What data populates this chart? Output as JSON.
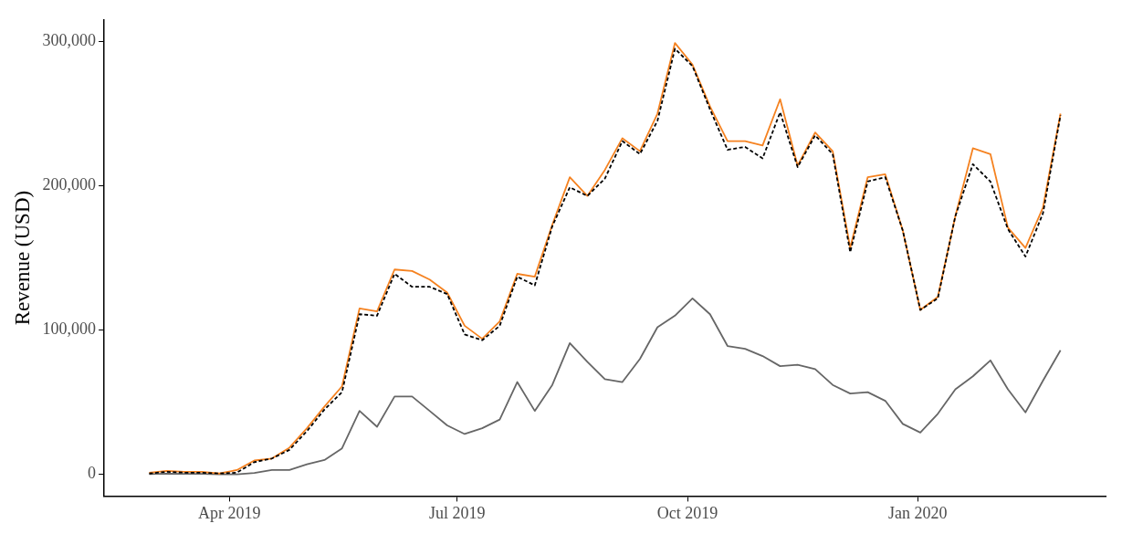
{
  "chart_data": {
    "type": "line",
    "ylabel": "Revenue (USD)",
    "x": [
      "2019-02-28",
      "2019-03-07",
      "2019-03-14",
      "2019-03-21",
      "2019-03-28",
      "2019-04-04",
      "2019-04-11",
      "2019-04-18",
      "2019-04-25",
      "2019-05-02",
      "2019-05-09",
      "2019-05-16",
      "2019-05-23",
      "2019-05-30",
      "2019-06-06",
      "2019-06-13",
      "2019-06-20",
      "2019-06-27",
      "2019-07-04",
      "2019-07-11",
      "2019-07-18",
      "2019-07-25",
      "2019-08-01",
      "2019-08-08",
      "2019-08-15",
      "2019-08-22",
      "2019-08-29",
      "2019-09-05",
      "2019-09-12",
      "2019-09-19",
      "2019-09-26",
      "2019-10-03",
      "2019-10-10",
      "2019-10-17",
      "2019-10-24",
      "2019-10-31",
      "2019-11-07",
      "2019-11-14",
      "2019-11-21",
      "2019-11-28",
      "2019-12-05",
      "2019-12-12",
      "2019-12-19",
      "2019-12-26",
      "2020-01-02",
      "2020-01-09",
      "2020-01-16",
      "2020-01-23",
      "2020-01-30",
      "2020-02-06",
      "2020-02-13",
      "2020-02-20",
      "2020-02-27"
    ],
    "series": [
      {
        "color": "#666666",
        "line_style": "solid",
        "values": [
          200,
          500,
          400,
          400,
          0,
          0,
          1000,
          3000,
          3000,
          7000,
          10000,
          18000,
          44000,
          33000,
          54000,
          54000,
          44000,
          34000,
          28000,
          32000,
          38000,
          64000,
          44000,
          62000,
          91000,
          78000,
          66000,
          64000,
          80000,
          102000,
          110000,
          122000,
          111000,
          89000,
          87000,
          82000,
          75000,
          76000,
          73000,
          62000,
          56000,
          57000,
          51000,
          35000,
          29000,
          42000,
          59000,
          68000,
          79000,
          59000,
          43000,
          65000,
          86000
        ]
      },
      {
        "color": "#f58220",
        "line_style": "solid",
        "values": [
          1200,
          2400,
          1800,
          1800,
          600,
          3000,
          9600,
          11000,
          18500,
          32000,
          47000,
          61000,
          115000,
          113000,
          142000,
          141000,
          135000,
          126000,
          103000,
          94000,
          106000,
          139000,
          137000,
          173000,
          206000,
          193000,
          211000,
          233000,
          224000,
          250000,
          299000,
          284000,
          255000,
          231000,
          231000,
          228000,
          260000,
          214000,
          237000,
          224000,
          157000,
          206000,
          208000,
          169000,
          114000,
          123000,
          179000,
          226000,
          222000,
          171000,
          157000,
          185000,
          250000
        ]
      },
      {
        "color": "#000000",
        "line_style": "dashed",
        "values": [
          600,
          1800,
          1200,
          1200,
          600,
          1200,
          8500,
          11000,
          17000,
          30000,
          45000,
          57000,
          111000,
          110000,
          139000,
          130000,
          130000,
          125000,
          97000,
          93000,
          103000,
          137000,
          131000,
          172000,
          199000,
          193000,
          205000,
          231000,
          222000,
          245000,
          295000,
          283000,
          253000,
          225000,
          227000,
          219000,
          251000,
          213000,
          235000,
          222000,
          154000,
          203000,
          206000,
          169000,
          114000,
          122000,
          179000,
          215000,
          203000,
          170000,
          151000,
          181000,
          249000
        ]
      }
    ],
    "xlim": [
      "2019-02-10",
      "2020-03-16"
    ],
    "xticks": [
      {
        "value": "2019-04-01",
        "label": "Apr 2019"
      },
      {
        "value": "2019-07-01",
        "label": "Jul 2019"
      },
      {
        "value": "2019-10-01",
        "label": "Oct 2019"
      },
      {
        "value": "2020-01-01",
        "label": "Jan 2020"
      }
    ],
    "ylim": [
      -15000,
      315000
    ],
    "yticks": [
      0,
      {
        "value": 100000,
        "label": "100,000"
      },
      {
        "value": 200000,
        "label": "200,000"
      },
      {
        "value": 300000,
        "label": "300,000"
      }
    ]
  }
}
